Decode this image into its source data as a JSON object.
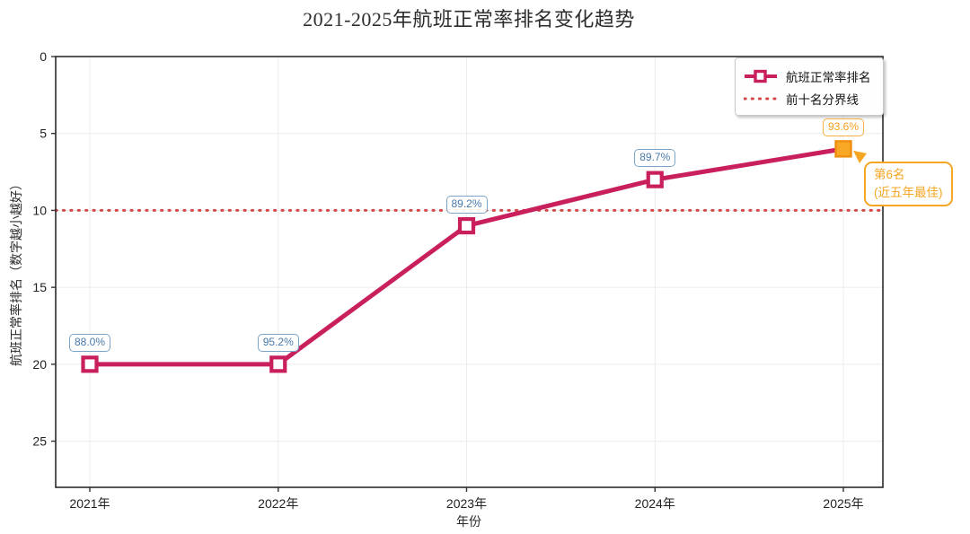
{
  "chart": {
    "title": "2021-2025年航班正常率排名变化趋势",
    "xlabel": "年份",
    "ylabel": "航班正常率排名（数字越小越好）",
    "legend": {
      "series_label": "航班正常率排名",
      "threshold_label": "前十名分界线"
    },
    "annotation": {
      "line1": "第6名",
      "line2": "(近五年最佳)"
    }
  },
  "chart_data": {
    "type": "line",
    "title": "2021-2025年航班正常率排名变化趋势",
    "xlabel": "年份",
    "ylabel": "航班正常率排名（数字越小越好）",
    "categories": [
      "2021年",
      "2022年",
      "2023年",
      "2024年",
      "2025年"
    ],
    "series": [
      {
        "name": "航班正常率排名",
        "values": [
          20,
          20,
          11,
          8,
          6
        ],
        "point_labels": [
          "88.0%",
          "95.2%",
          "89.2%",
          "89.7%",
          "93.6%"
        ],
        "color": "#C9205D",
        "marker": "square-hollow",
        "best_index": 4,
        "best_marker_fill": "#F9A825",
        "best_marker_edge": "#EF8E0F"
      }
    ],
    "threshold": {
      "value": 10,
      "label": "前十名分界线",
      "color": "#D24A4A",
      "style": "dotted"
    },
    "annotation": {
      "text": "第6名 (近五年最佳)",
      "target_category": "2025年",
      "target_value": 6,
      "color": "#F5A623"
    },
    "yticks": [
      0,
      5,
      10,
      15,
      20,
      25
    ],
    "ylim": [
      0,
      28
    ],
    "y_inverted": true,
    "grid": true,
    "legend_position": "upper right",
    "point_label_color": "#4878A8",
    "best_point_label_color": "#F59E1B"
  }
}
